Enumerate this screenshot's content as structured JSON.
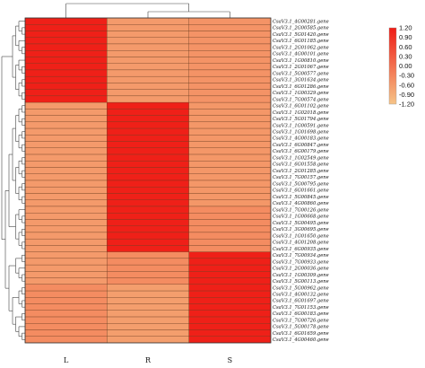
{
  "chart_data": {
    "type": "heatmap",
    "title": "",
    "xlabel": "",
    "ylabel": "",
    "columns": [
      "L",
      "R",
      "S"
    ],
    "rows": [
      "CsaV3.1_4G00281.gene",
      "CsaV3.1_2G00585.gene",
      "CsaV3.1_5G01420.gene",
      "CsaV3.1_6G01185.gene",
      "CsaV3.1_2G01062.gene",
      "CsaV3.1_4G00101.gene",
      "CsaV3.1_1G00810.gene",
      "CsaV3.1_2G01067.gene",
      "CsaV3.1_5G00577.gene",
      "CsaV3.1_3G01634.gene",
      "CsaV3.1_6G01286.gene",
      "CsaV3.1_1G00329.gene",
      "CsaV3.1_7G00574.gene",
      "CsaV3.1_6G01102.gene",
      "CsaV3.1_1G02018.gene",
      "CsaV3.1_5G01794.gene",
      "CsaV3.1_1G00591.gene",
      "CsaV3.1_1G01698.gene",
      "CsaV3.1_4G00183.gene",
      "CsaV3.1_6G00847.gene",
      "CsaV3.1_6G00179.gene",
      "CsaV3.1_1G02549.gene",
      "CsaV3.1_6G01558.gene",
      "CsaV3.1_2G01285.gene",
      "CsaV3.1_7G00157.gene",
      "CsaV3.1_5G00795.gene",
      "CsaV3.1_6G01661.gene",
      "CsaV3.1_5G00845.gene",
      "CsaV3.1_4G00860.gene",
      "CsaV3.1_7G00126.gene",
      "CsaV3.1_1G00668.gene",
      "CsaV3.1_5G00495.gene",
      "CsaV3.1_3G00695.gene",
      "CsaV3.1_1G01650.gene",
      "CsaV3.1_4G01208.gene",
      "CsaV3.1_6G00935.gene",
      "CsaV3.1_7G00934.gene",
      "CsaV3.1_7G00933.gene",
      "CsaV3.1_2G00036.gene",
      "CsaV3.1_1G00309.gene",
      "CsaV3.1_5G00113.gene",
      "CsaV3.1_5G00962.gene",
      "CsaV3.1_4G00132.gene",
      "CsaV3.1_6G01697.gene",
      "CsaV3.1_7G01153.gene",
      "CsaV3.1_6G00183.gene",
      "CsaV3.1_7G00726.gene",
      "CsaV3.1_5G00178.gene",
      "CsaV3.1_6G01659.gene",
      "CsaV3.1_4G00460.gene"
    ],
    "values": [
      [
        1.15,
        -0.6,
        -0.5
      ],
      [
        1.15,
        -0.6,
        -0.5
      ],
      [
        1.15,
        -0.6,
        -0.5
      ],
      [
        1.15,
        -0.6,
        -0.5
      ],
      [
        1.15,
        -0.6,
        -0.5
      ],
      [
        1.15,
        -0.6,
        -0.5
      ],
      [
        1.15,
        -0.6,
        -0.5
      ],
      [
        1.15,
        -0.6,
        -0.5
      ],
      [
        1.15,
        -0.6,
        -0.5
      ],
      [
        1.15,
        -0.6,
        -0.5
      ],
      [
        1.15,
        -0.6,
        -0.5
      ],
      [
        1.15,
        -0.6,
        -0.5
      ],
      [
        1.15,
        -0.6,
        -0.5
      ],
      [
        -0.6,
        1.15,
        -0.55
      ],
      [
        -0.6,
        1.15,
        -0.55
      ],
      [
        -0.6,
        1.15,
        -0.55
      ],
      [
        -0.6,
        1.15,
        -0.55
      ],
      [
        -0.6,
        1.15,
        -0.55
      ],
      [
        -0.6,
        1.15,
        -0.55
      ],
      [
        -0.6,
        1.15,
        -0.55
      ],
      [
        -0.6,
        1.15,
        -0.55
      ],
      [
        -0.6,
        1.15,
        -0.55
      ],
      [
        -0.6,
        1.15,
        -0.55
      ],
      [
        -0.6,
        1.15,
        -0.55
      ],
      [
        -0.6,
        1.15,
        -0.55
      ],
      [
        -0.6,
        1.15,
        -0.55
      ],
      [
        -0.6,
        1.15,
        -0.55
      ],
      [
        -0.6,
        1.15,
        -0.55
      ],
      [
        -0.6,
        1.15,
        -0.55
      ],
      [
        -0.6,
        1.15,
        -0.4
      ],
      [
        -0.6,
        1.15,
        -0.4
      ],
      [
        -0.6,
        1.15,
        -0.4
      ],
      [
        -0.6,
        1.15,
        -0.4
      ],
      [
        -0.6,
        1.15,
        -0.4
      ],
      [
        -0.6,
        1.15,
        -0.4
      ],
      [
        -0.6,
        1.15,
        -0.4
      ],
      [
        -0.6,
        -0.4,
        1.15
      ],
      [
        -0.6,
        -0.4,
        1.15
      ],
      [
        -0.6,
        -0.4,
        1.15
      ],
      [
        -0.6,
        -0.4,
        1.15
      ],
      [
        -0.6,
        -0.4,
        1.15
      ],
      [
        -0.4,
        -0.65,
        1.15
      ],
      [
        -0.4,
        -0.65,
        1.15
      ],
      [
        -0.4,
        -0.65,
        1.15
      ],
      [
        -0.4,
        -0.65,
        1.15
      ],
      [
        -0.4,
        -0.65,
        1.15
      ],
      [
        -0.4,
        -0.65,
        1.15
      ],
      [
        -0.4,
        -0.65,
        1.15
      ],
      [
        -0.4,
        -0.65,
        1.15
      ],
      [
        -0.4,
        -0.65,
        1.15
      ]
    ],
    "color_scale": {
      "min": -1.2,
      "max": 1.2,
      "low_color": "#f6c487",
      "high_color": "#ef1c16",
      "ticks": [
        "1.20",
        "0.90",
        "0.60",
        "0.30",
        "0.00",
        "-0.30",
        "-0.60",
        "-0.90",
        "-1.20"
      ]
    },
    "legend_position": "top-right",
    "row_dendrogram": "left",
    "column_dendrogram": "top",
    "grid": true
  }
}
